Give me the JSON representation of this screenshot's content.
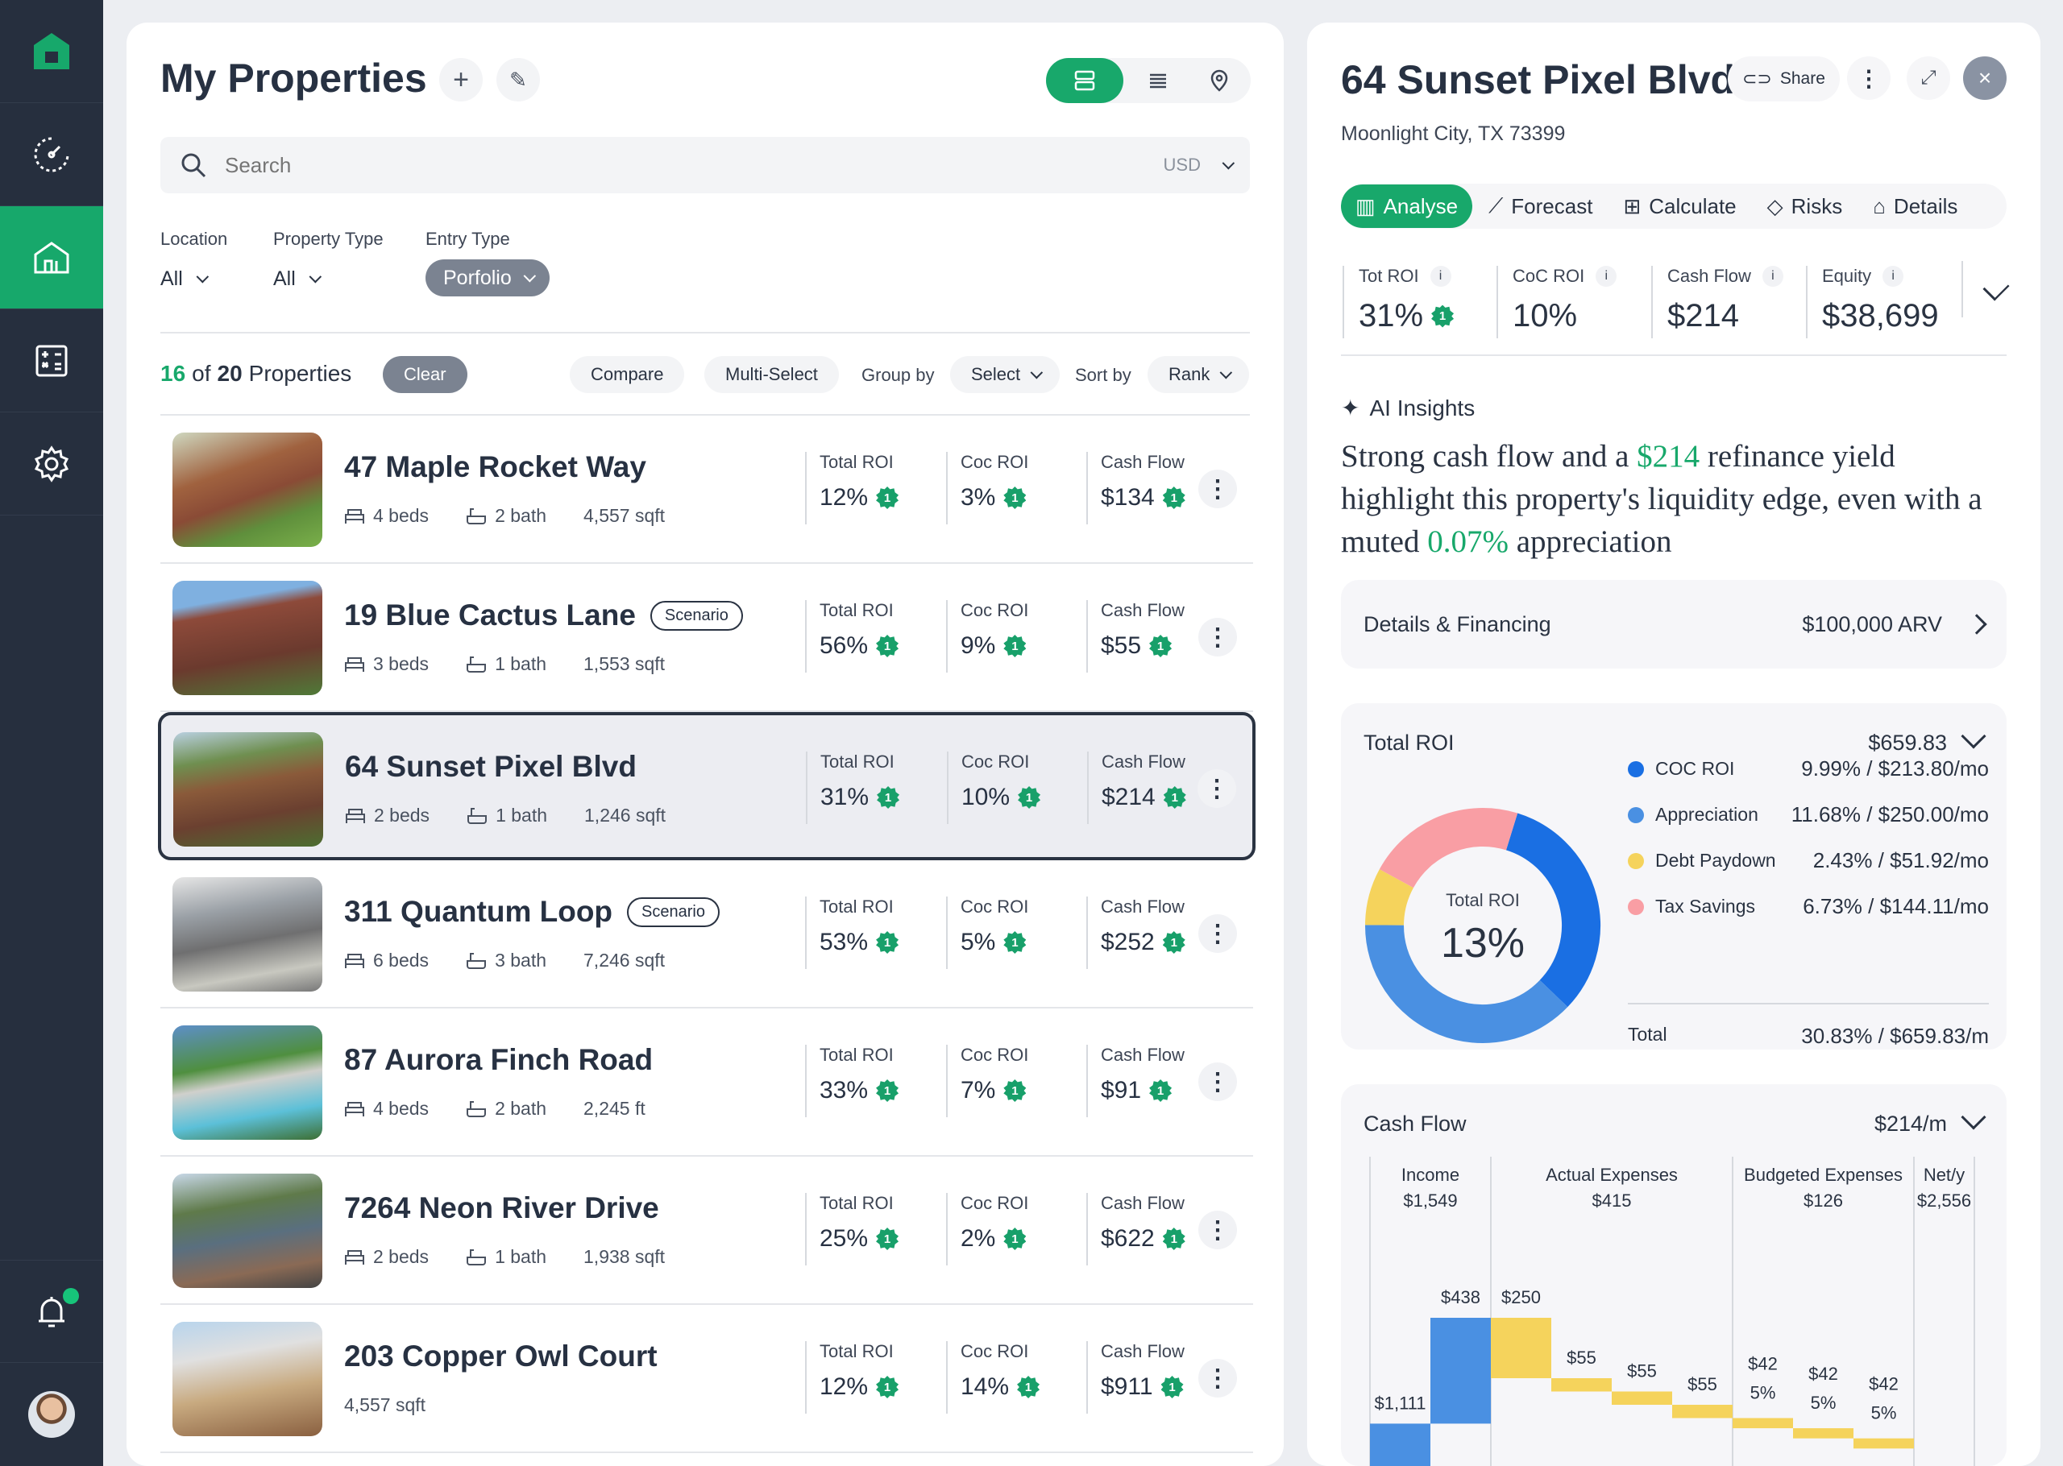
{
  "sidebar": {
    "items": [
      {
        "name": "dashboard",
        "icon": "speedometer-icon"
      },
      {
        "name": "properties",
        "icon": "home-icon",
        "active": true
      },
      {
        "name": "calculator",
        "icon": "calculator-icon"
      },
      {
        "name": "settings",
        "icon": "gear-icon"
      }
    ],
    "has_notification": true
  },
  "list": {
    "title": "My Properties",
    "search_placeholder": "Search",
    "currency": "USD",
    "filters": [
      {
        "label": "Location",
        "value": "All"
      },
      {
        "label": "Property Type",
        "value": "All"
      },
      {
        "label": "Entry Type",
        "value": "Porfolio"
      }
    ],
    "count_shown": "16",
    "count_of": "of",
    "count_total": "20",
    "count_suffix": "Properties",
    "clear": "Clear",
    "compare": "Compare",
    "multi_select": "Multi-Select",
    "group_by": "Group by",
    "group_value": "Select",
    "sort_by": "Sort by",
    "sort_value": "Rank",
    "stat_labels": {
      "total": "Total ROI",
      "coc": "Coc ROI",
      "cash": "Cash Flow"
    },
    "properties": [
      {
        "name": "47 Maple Rocket Way",
        "scenario": "",
        "beds": "4 beds",
        "bath": "2 bath",
        "sqft": "4,557 sqft",
        "total_roi": "12%",
        "coc_roi": "3%",
        "cash_flow": "$134",
        "badge": "1"
      },
      {
        "name": "19 Blue Cactus Lane",
        "scenario": "Scenario",
        "beds": "3 beds",
        "bath": "1 bath",
        "sqft": "1,553 sqft",
        "total_roi": "56%",
        "coc_roi": "9%",
        "cash_flow": "$55",
        "badge": "1"
      },
      {
        "name": "64 Sunset Pixel Blvd",
        "scenario": "",
        "beds": "2 beds",
        "bath": "1 bath",
        "sqft": "1,246 sqft",
        "total_roi": "31%",
        "coc_roi": "10%",
        "cash_flow": "$214",
        "badge": "1",
        "selected": true
      },
      {
        "name": "311 Quantum Loop",
        "scenario": "Scenario",
        "beds": "6 beds",
        "bath": "3 bath",
        "sqft": "7,246 sqft",
        "total_roi": "53%",
        "coc_roi": "5%",
        "cash_flow": "$252",
        "badge": "1"
      },
      {
        "name": "87 Aurora Finch Road",
        "scenario": "",
        "beds": "4 beds",
        "bath": "2 bath",
        "sqft": "2,245 ft",
        "total_roi": "33%",
        "coc_roi": "7%",
        "cash_flow": "$91",
        "badge": "1"
      },
      {
        "name": "7264 Neon River Drive",
        "scenario": "",
        "beds": "2 beds",
        "bath": "1 bath",
        "sqft": "1,938 sqft",
        "total_roi": "25%",
        "coc_roi": "2%",
        "cash_flow": "$622",
        "badge": "1"
      },
      {
        "name": "203 Copper Owl Court",
        "scenario": "",
        "beds": "",
        "bath": "",
        "sqft": "4,557 sqft",
        "total_roi": "12%",
        "coc_roi": "14%",
        "cash_flow": "$911",
        "badge": "1"
      }
    ]
  },
  "detail": {
    "title": "64 Sunset Pixel Blvd",
    "address": "Moonlight City, TX 73399",
    "share": "Share",
    "tabs": [
      "Analyse",
      "Forecast",
      "Calculate",
      "Risks",
      "Details"
    ],
    "metrics": [
      {
        "label": "Tot ROI",
        "value": "31%",
        "badge": "1"
      },
      {
        "label": "CoC ROI",
        "value": "10%"
      },
      {
        "label": "Cash Flow",
        "value": "$214"
      },
      {
        "label": "Equity",
        "value": "$38,699"
      }
    ],
    "ai_title": "AI Insights",
    "ai_text": {
      "p1": "Strong cash flow and a ",
      "h1": "$214",
      "p2": " refinance yield highlight this property's liquidity edge, even with a muted ",
      "h2": "0.07%",
      "p3": " appreciation"
    },
    "financing": {
      "label": "Details & Financing",
      "value": "$100,000 ARV"
    },
    "total_roi": {
      "title": "Total ROI",
      "value": "$659.83",
      "center_label": "Total ROI",
      "center_value": "13%",
      "total_label": "Total",
      "total_value": "30.83% / $659.83/m"
    },
    "cash_flow": {
      "title": "Cash Flow",
      "value": "$214/m"
    }
  },
  "chart_data": [
    {
      "type": "pie",
      "title": "Total ROI",
      "center": "13%",
      "slices": [
        {
          "name": "COC ROI",
          "pct": 9.99,
          "monthly": 213.8,
          "text": "9.99% / $213.80/mo",
          "color": "#1a6fe3"
        },
        {
          "name": "Appreciation",
          "pct": 11.68,
          "monthly": 250.0,
          "text": "11.68% / $250.00/mo",
          "color": "#4a90e2"
        },
        {
          "name": "Debt Paydown",
          "pct": 2.43,
          "monthly": 51.92,
          "text": "2.43% / $51.92/mo",
          "color": "#f5d35c"
        },
        {
          "name": "Tax Savings",
          "pct": 6.73,
          "monthly": 144.11,
          "text": "6.73% / $144.11/mo",
          "color": "#f99ea4"
        }
      ]
    },
    {
      "type": "bar",
      "title": "Cash Flow",
      "subtype": "waterfall",
      "groups": [
        {
          "name": "Income",
          "total": "$1,549"
        },
        {
          "name": "Actual Expenses",
          "total": "$415"
        },
        {
          "name": "Budgeted Expenses",
          "total": "$126"
        },
        {
          "name": "Net/y",
          "total": "$2,556"
        }
      ],
      "bars": [
        {
          "group": "Income",
          "value": 1111,
          "label": "$1,111",
          "kind": "income"
        },
        {
          "group": "Income",
          "value": 438,
          "label": "$438",
          "kind": "income"
        },
        {
          "group": "Actual Expenses",
          "value": 250,
          "label": "$250",
          "kind": "expense"
        },
        {
          "group": "Actual Expenses",
          "value": 55,
          "label": "$55",
          "kind": "expense"
        },
        {
          "group": "Actual Expenses",
          "value": 55,
          "label": "$55",
          "kind": "expense"
        },
        {
          "group": "Actual Expenses",
          "value": 55,
          "label": "$55",
          "kind": "expense"
        },
        {
          "group": "Budgeted Expenses",
          "value": 42,
          "label": "$42",
          "pct": "5%",
          "kind": "expense"
        },
        {
          "group": "Budgeted Expenses",
          "value": 42,
          "label": "$42",
          "pct": "5%",
          "kind": "expense"
        },
        {
          "group": "Budgeted Expenses",
          "value": 42,
          "label": "$42",
          "pct": "5%",
          "kind": "expense"
        }
      ],
      "colors": {
        "income": "#4a90e2",
        "expense": "#f5d35c"
      }
    }
  ]
}
